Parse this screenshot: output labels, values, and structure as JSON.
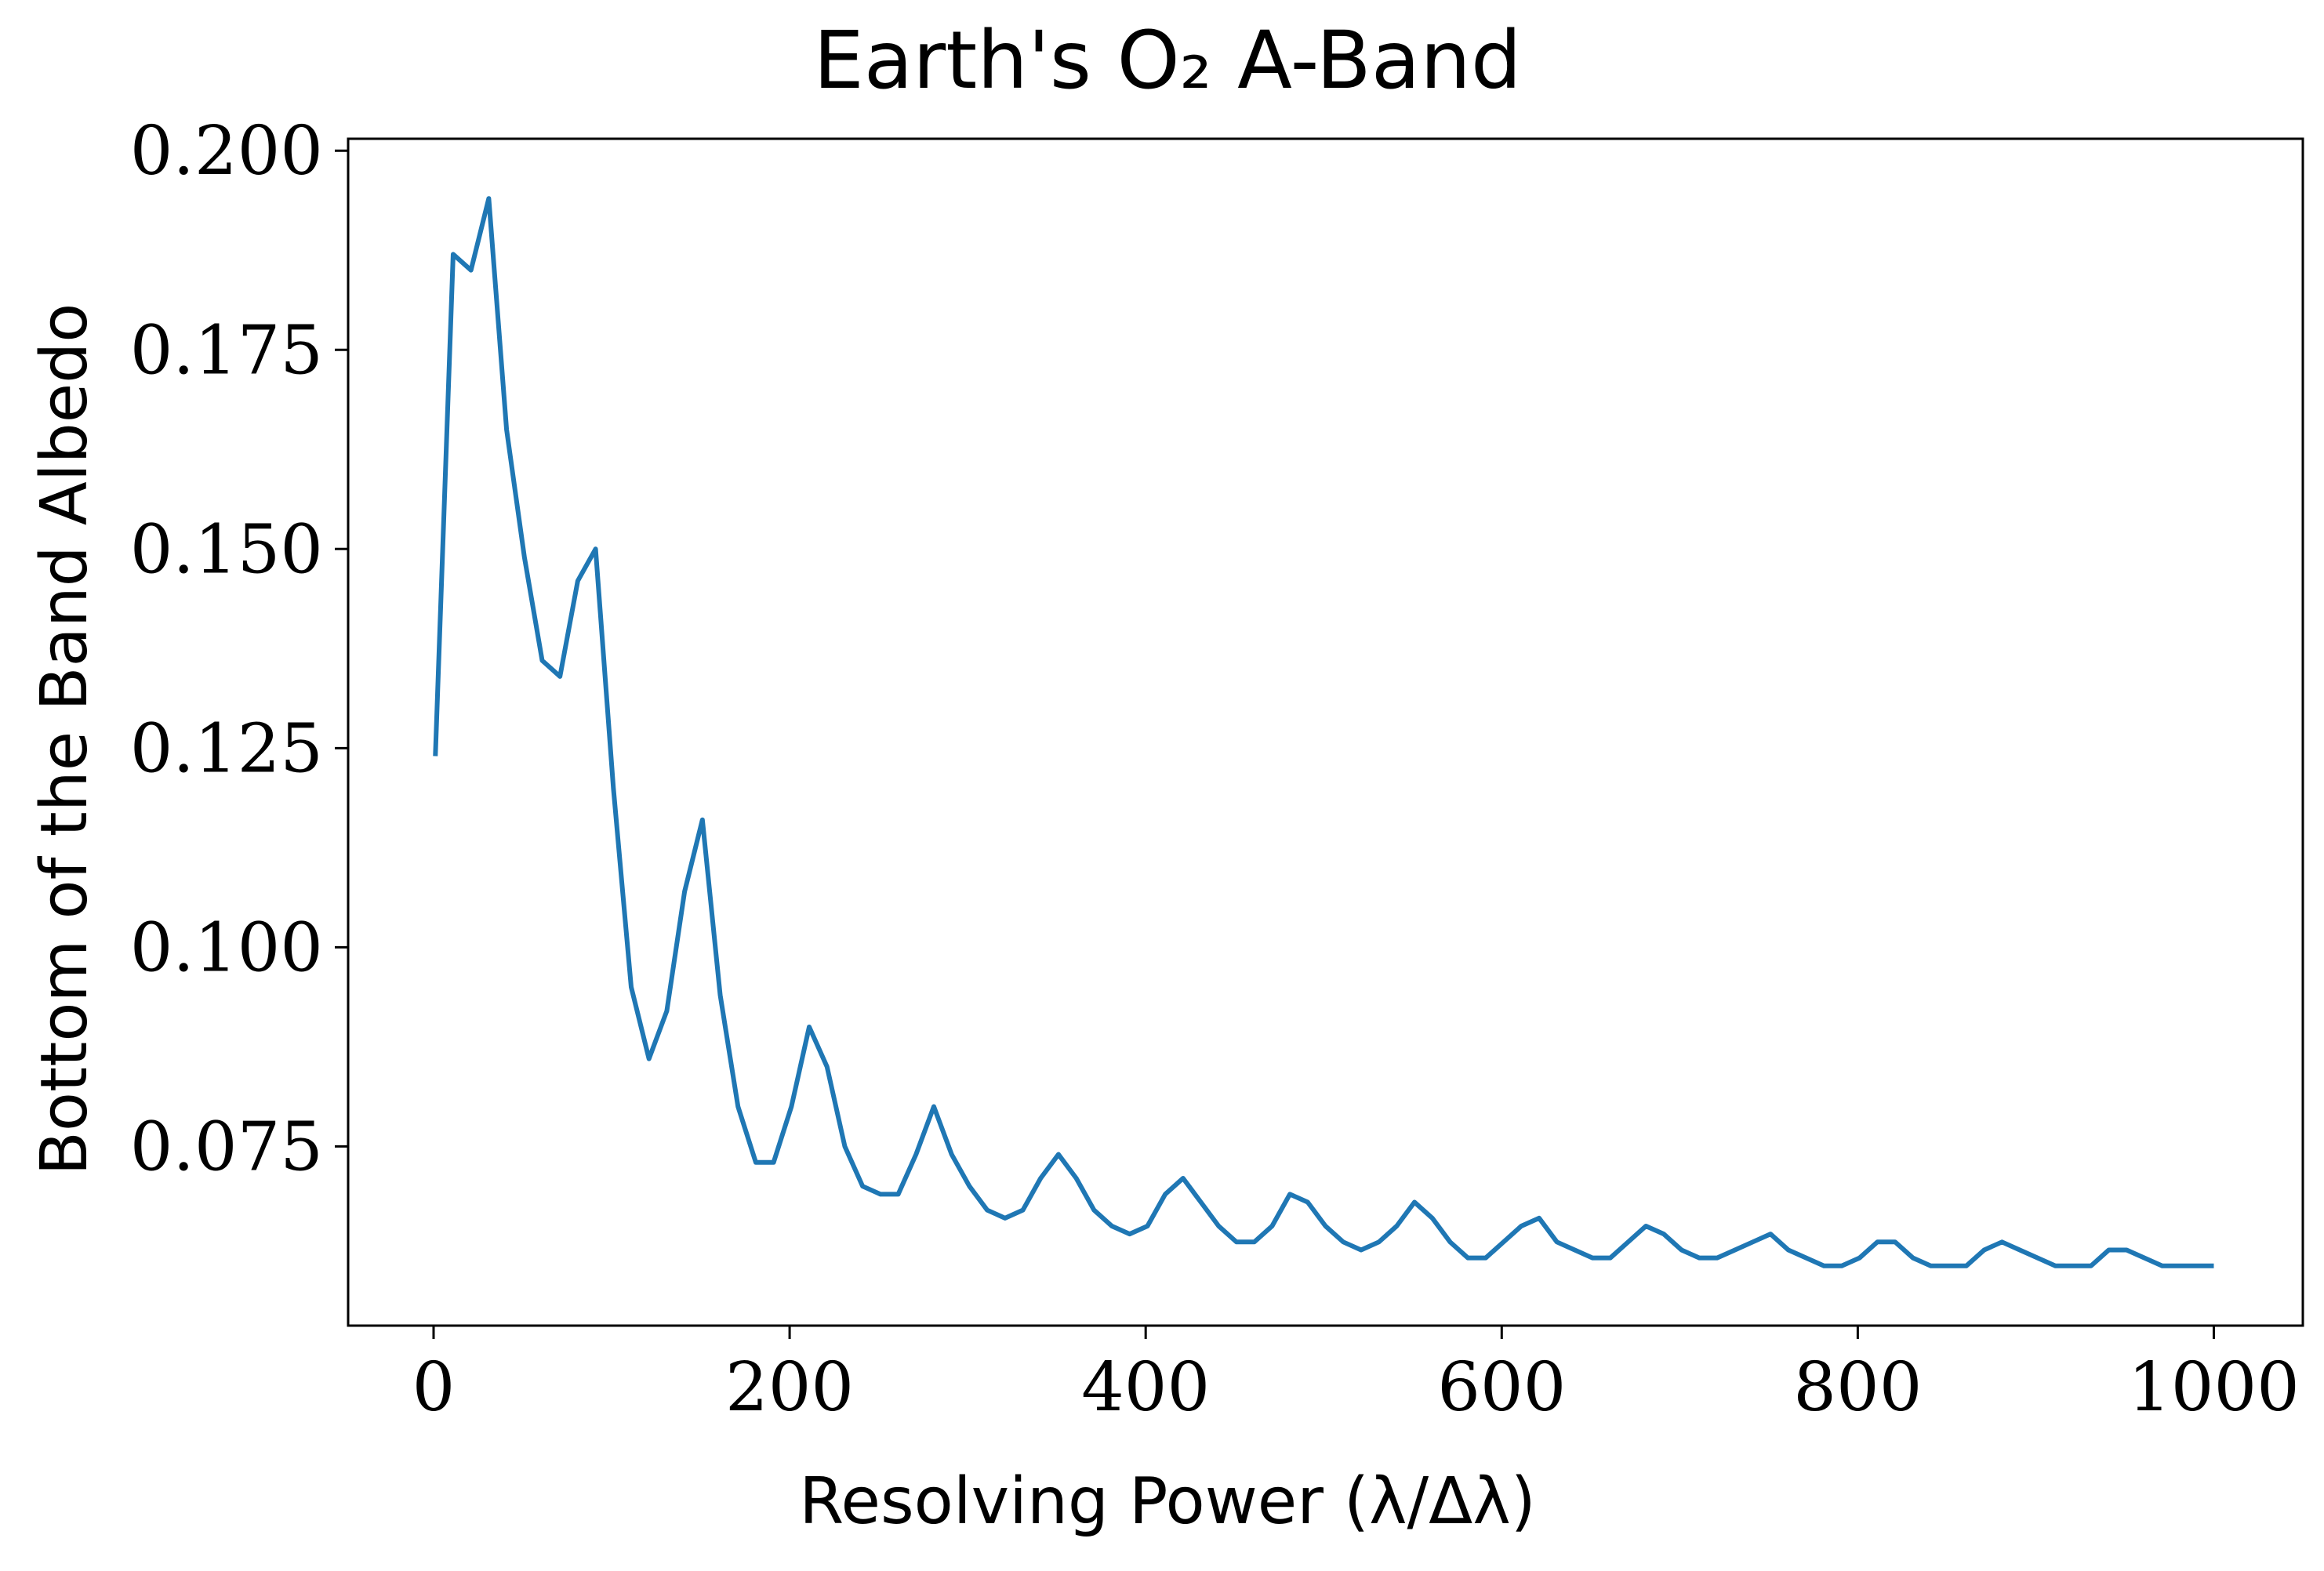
{
  "chart_data": {
    "type": "line",
    "title": "Earth's O₂ A-Band",
    "xlabel": "Resolving Power (λ/Δλ)",
    "ylabel": "Bottom of the Band Albedo",
    "xlim": [
      -48,
      1050
    ],
    "ylim": [
      0.0525,
      0.2015
    ],
    "xticks": [
      0,
      200,
      400,
      600,
      800,
      1000
    ],
    "xtick_labels": [
      "0",
      "200",
      "400",
      "600",
      "800",
      "1000"
    ],
    "yticks": [
      0.075,
      0.1,
      0.125,
      0.15,
      0.175,
      0.2
    ],
    "ytick_labels": [
      "0.075",
      "0.100",
      "0.125",
      "0.150",
      "0.175",
      "0.200"
    ],
    "grid": false,
    "line_color": "#1f77b4",
    "series": [
      {
        "x": [
          1,
          11,
          21,
          31,
          41,
          51,
          61,
          71,
          81,
          91,
          101,
          111,
          121,
          131,
          141,
          151,
          161,
          171,
          181,
          191,
          201,
          211,
          221,
          231,
          241,
          251,
          261,
          271,
          281,
          291,
          301,
          311,
          321,
          331,
          341,
          351,
          361,
          371,
          381,
          391,
          401,
          411,
          421,
          431,
          441,
          451,
          461,
          471,
          481,
          491,
          501,
          511,
          521,
          531,
          541,
          551,
          561,
          571,
          581,
          591,
          601,
          611,
          621,
          631,
          641,
          651,
          661,
          671,
          681,
          691,
          701,
          711,
          721,
          731,
          741,
          751,
          761,
          771,
          781,
          791,
          801,
          811,
          821,
          831,
          841,
          851,
          861,
          871,
          881,
          891,
          901,
          911,
          921,
          931,
          941,
          951,
          961,
          971,
          981,
          991,
          1000
        ],
        "values": [
          0.124,
          0.187,
          0.185,
          0.194,
          0.165,
          0.149,
          0.136,
          0.134,
          0.146,
          0.15,
          0.12,
          0.095,
          0.086,
          0.092,
          0.107,
          0.116,
          0.094,
          0.08,
          0.073,
          0.073,
          0.08,
          0.09,
          0.085,
          0.075,
          0.07,
          0.069,
          0.069,
          0.074,
          0.08,
          0.074,
          0.07,
          0.067,
          0.066,
          0.067,
          0.071,
          0.074,
          0.071,
          0.067,
          0.065,
          0.064,
          0.065,
          0.069,
          0.071,
          0.068,
          0.065,
          0.063,
          0.063,
          0.065,
          0.069,
          0.068,
          0.065,
          0.063,
          0.062,
          0.063,
          0.065,
          0.068,
          0.066,
          0.063,
          0.061,
          0.061,
          0.063,
          0.065,
          0.066,
          0.063,
          0.062,
          0.061,
          0.061,
          0.063,
          0.065,
          0.064,
          0.062,
          0.061,
          0.061,
          0.062,
          0.063,
          0.064,
          0.062,
          0.061,
          0.06,
          0.06,
          0.061,
          0.063,
          0.063,
          0.061,
          0.06,
          0.06,
          0.06,
          0.062,
          0.063,
          0.062,
          0.061,
          0.06,
          0.06,
          0.06,
          0.062,
          0.062,
          0.061,
          0.06,
          0.06,
          0.06,
          0.06
        ]
      }
    ]
  }
}
